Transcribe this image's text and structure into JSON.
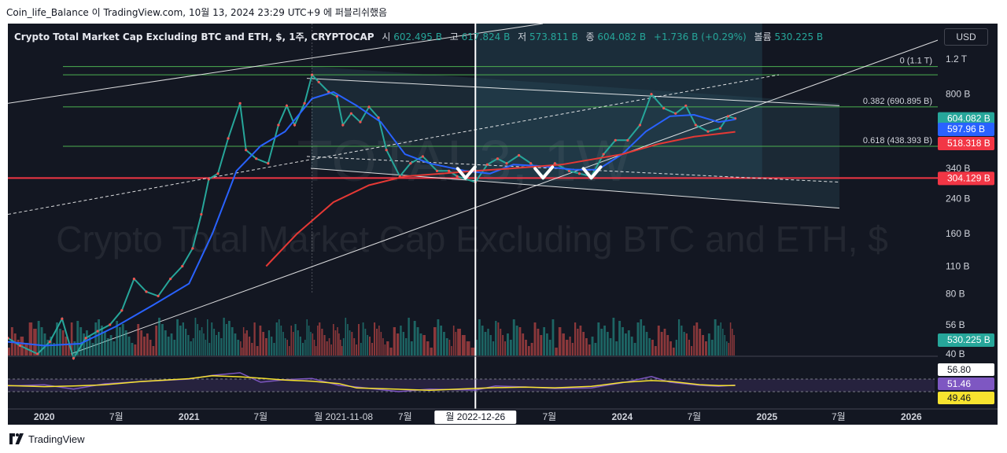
{
  "caption": "Coin_life_Balance 이 TradingView.com, 10월 13, 2024 23:29 UTC+9 에 퍼블리쉬했음",
  "brand": "TradingView",
  "header": {
    "symbol": "Crypto Total Market Cap Excluding BTC and ETH, $, 1주, CRYPTOCAP",
    "open_label": "시",
    "open": "602.495 B",
    "high_label": "고",
    "high": "617.824 B",
    "low_label": "저",
    "low": "573.811 B",
    "close_label": "종",
    "close": "604.082 B",
    "change": "+1.736 B (+0.29%)",
    "volume_label": "볼륨",
    "volume": "530.225 B"
  },
  "currency_button": "USD",
  "watermark": {
    "ticker": "TOTAL3, 1W",
    "name": "Crypto Total Market Cap Excluding BTC and ETH, $"
  },
  "chart_data": {
    "type": "line",
    "y_scale": "log",
    "price_axis_labels": [
      "1.2 T",
      "800 B",
      "340 B",
      "240 B",
      "160 B",
      "110 B",
      "80 B",
      "56 B",
      "40 B"
    ],
    "price_axis_values": [
      1200,
      800,
      340,
      240,
      160,
      110,
      80,
      56,
      40
    ],
    "time_axis_labels": [
      "2020",
      "7월",
      "2021",
      "7월",
      "7월",
      "7월",
      "2024",
      "7월",
      "2025",
      "7월",
      "2026"
    ],
    "time_axis_dates": [
      "2020-01-01",
      "2020-07-01",
      "2021-01-01",
      "2021-07-01",
      "2022-07-01",
      "2023-07-01",
      "2024-01-01",
      "2024-07-01",
      "2025-01-01",
      "2025-07-01",
      "2026-01-01"
    ],
    "price_badges": [
      {
        "label": "604.082 B",
        "value": 604.082,
        "color": "#26a69a"
      },
      {
        "label": "597.96 B",
        "value": 597.96,
        "color": "#2962ff"
      },
      {
        "label": "518.318 B",
        "value": 518.318,
        "color": "#f23645"
      },
      {
        "label": "304.129 B",
        "value": 304.129,
        "color": "#f23645"
      },
      {
        "label": "530.225 B",
        "value": 530.225,
        "color": "#26a69a"
      }
    ],
    "fib_levels": [
      {
        "label": "0 (1.1 T)",
        "value": 1100
      },
      {
        "label": "0.382 (690.895 B)",
        "value": 690.895
      },
      {
        "label": "0.618 (438.393 B)",
        "value": 438.393
      }
    ],
    "crosshair_dates": [
      {
        "label": "월 2021-11-08",
        "date": "2021-11-08"
      },
      {
        "label": "월 2022-12-26",
        "date": "2022-12-26"
      }
    ],
    "price_series": {
      "name": "TOTAL3",
      "points": [
        [
          "2019-10-01",
          48
        ],
        [
          "2019-11-01",
          44
        ],
        [
          "2019-12-15",
          40
        ],
        [
          "2020-01-15",
          46
        ],
        [
          "2020-02-15",
          60
        ],
        [
          "2020-03-15",
          38
        ],
        [
          "2020-04-15",
          48
        ],
        [
          "2020-05-15",
          52
        ],
        [
          "2020-06-15",
          56
        ],
        [
          "2020-07-15",
          66
        ],
        [
          "2020-08-15",
          95
        ],
        [
          "2020-09-15",
          82
        ],
        [
          "2020-10-15",
          78
        ],
        [
          "2020-11-15",
          95
        ],
        [
          "2020-12-15",
          110
        ],
        [
          "2021-01-10",
          135
        ],
        [
          "2021-02-01",
          200
        ],
        [
          "2021-02-20",
          300
        ],
        [
          "2021-03-15",
          320
        ],
        [
          "2021-04-10",
          480
        ],
        [
          "2021-05-10",
          720
        ],
        [
          "2021-05-25",
          420
        ],
        [
          "2021-06-20",
          380
        ],
        [
          "2021-07-20",
          360
        ],
        [
          "2021-08-15",
          560
        ],
        [
          "2021-09-05",
          700
        ],
        [
          "2021-09-25",
          560
        ],
        [
          "2021-10-20",
          720
        ],
        [
          "2021-11-08",
          1000
        ],
        [
          "2021-11-25",
          920
        ],
        [
          "2021-12-20",
          820
        ],
        [
          "2022-01-10",
          780
        ],
        [
          "2022-01-25",
          560
        ],
        [
          "2022-02-15",
          640
        ],
        [
          "2022-03-10",
          580
        ],
        [
          "2022-04-01",
          690
        ],
        [
          "2022-04-25",
          610
        ],
        [
          "2022-05-15",
          420
        ],
        [
          "2022-06-18",
          310
        ],
        [
          "2022-07-15",
          360
        ],
        [
          "2022-08-15",
          390
        ],
        [
          "2022-09-20",
          330
        ],
        [
          "2022-10-20",
          330
        ],
        [
          "2022-11-10",
          310
        ],
        [
          "2022-12-26",
          290
        ],
        [
          "2023-01-25",
          355
        ],
        [
          "2023-02-20",
          380
        ],
        [
          "2023-03-15",
          360
        ],
        [
          "2023-04-15",
          395
        ],
        [
          "2023-05-15",
          360
        ],
        [
          "2023-06-15",
          310
        ],
        [
          "2023-07-15",
          360
        ],
        [
          "2023-08-20",
          330
        ],
        [
          "2023-09-15",
          320
        ],
        [
          "2023-10-15",
          310
        ],
        [
          "2023-11-15",
          400
        ],
        [
          "2023-12-15",
          470
        ],
        [
          "2024-01-15",
          470
        ],
        [
          "2024-02-15",
          560
        ],
        [
          "2024-03-15",
          800
        ],
        [
          "2024-04-15",
          680
        ],
        [
          "2024-05-15",
          640
        ],
        [
          "2024-06-10",
          700
        ],
        [
          "2024-07-05",
          560
        ],
        [
          "2024-08-05",
          520
        ],
        [
          "2024-09-05",
          540
        ],
        [
          "2024-09-25",
          620
        ],
        [
          "2024-10-13",
          604
        ]
      ]
    },
    "sma_blue": {
      "name": "MA",
      "points": [
        [
          "2019-10-01",
          46
        ],
        [
          "2020-01-01",
          44
        ],
        [
          "2020-04-01",
          45
        ],
        [
          "2020-07-01",
          55
        ],
        [
          "2020-10-01",
          70
        ],
        [
          "2021-01-01",
          90
        ],
        [
          "2021-03-01",
          160
        ],
        [
          "2021-05-01",
          330
        ],
        [
          "2021-07-01",
          440
        ],
        [
          "2021-09-01",
          520
        ],
        [
          "2021-11-08",
          760
        ],
        [
          "2022-01-01",
          820
        ],
        [
          "2022-03-01",
          700
        ],
        [
          "2022-05-01",
          580
        ],
        [
          "2022-07-01",
          400
        ],
        [
          "2022-09-01",
          360
        ],
        [
          "2022-12-01",
          330
        ],
        [
          "2023-02-01",
          320
        ],
        [
          "2023-04-01",
          355
        ],
        [
          "2023-06-01",
          350
        ],
        [
          "2023-09-01",
          335
        ],
        [
          "2023-11-01",
          335
        ],
        [
          "2024-01-01",
          400
        ],
        [
          "2024-03-01",
          520
        ],
        [
          "2024-05-01",
          620
        ],
        [
          "2024-07-01",
          630
        ],
        [
          "2024-09-01",
          580
        ],
        [
          "2024-10-13",
          598
        ]
      ]
    },
    "sma_red": {
      "name": "MA",
      "points": [
        [
          "2021-07-15",
          110
        ],
        [
          "2021-10-01",
          160
        ],
        [
          "2022-01-01",
          230
        ],
        [
          "2022-04-01",
          280
        ],
        [
          "2022-07-01",
          310
        ],
        [
          "2022-10-01",
          320
        ],
        [
          "2022-12-26",
          330
        ],
        [
          "2023-04-01",
          340
        ],
        [
          "2023-08-01",
          355
        ],
        [
          "2024-01-01",
          400
        ],
        [
          "2024-04-01",
          450
        ],
        [
          "2024-07-01",
          490
        ],
        [
          "2024-10-13",
          518
        ]
      ]
    },
    "volume": {
      "label": "볼륨",
      "last": 530.225
    },
    "rsi_labels": [
      "56.80",
      "51.46",
      "49.46"
    ],
    "rsi_values": [
      56.8,
      51.46,
      49.46
    ],
    "rsi_series": [
      [
        "2019-10-01",
        48
      ],
      [
        "2020-01-01",
        52
      ],
      [
        "2020-03-15",
        38
      ],
      [
        "2020-06-01",
        55
      ],
      [
        "2020-09-01",
        62
      ],
      [
        "2021-01-01",
        70
      ],
      [
        "2021-03-01",
        82
      ],
      [
        "2021-05-10",
        90
      ],
      [
        "2021-07-01",
        60
      ],
      [
        "2021-09-01",
        68
      ],
      [
        "2021-11-08",
        72
      ],
      [
        "2022-01-15",
        50
      ],
      [
        "2022-03-01",
        45
      ],
      [
        "2022-06-15",
        30
      ],
      [
        "2022-09-01",
        38
      ],
      [
        "2022-12-26",
        35
      ],
      [
        "2023-02-15",
        48
      ],
      [
        "2023-05-01",
        45
      ],
      [
        "2023-07-15",
        40
      ],
      [
        "2023-10-15",
        42
      ],
      [
        "2024-01-01",
        58
      ],
      [
        "2024-03-15",
        78
      ],
      [
        "2024-05-01",
        60
      ],
      [
        "2024-07-15",
        50
      ],
      [
        "2024-09-01",
        47
      ],
      [
        "2024-10-13",
        51
      ]
    ]
  }
}
